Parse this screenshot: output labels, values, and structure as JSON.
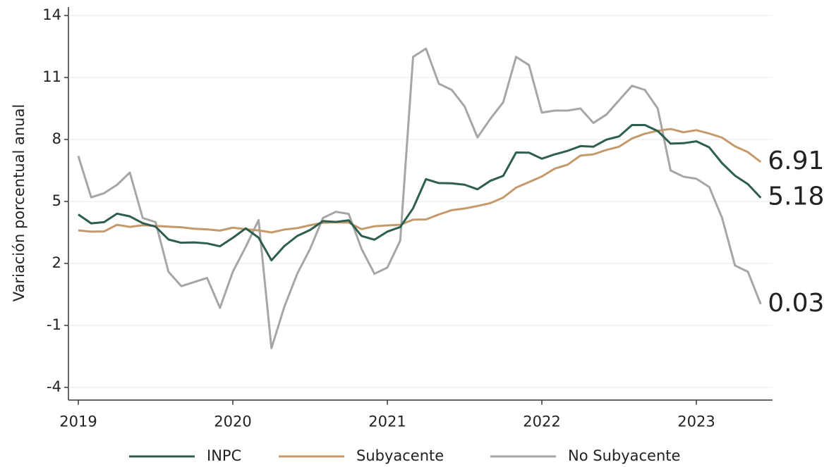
{
  "chart_data": {
    "type": "line",
    "ylabel": "Variación porcentual anual",
    "categories": [
      "2019",
      null,
      null,
      null,
      null,
      null,
      null,
      null,
      null,
      null,
      null,
      null,
      "2020",
      null,
      null,
      null,
      null,
      null,
      null,
      null,
      null,
      null,
      null,
      null,
      "2021",
      null,
      null,
      null,
      null,
      null,
      null,
      null,
      null,
      null,
      null,
      null,
      "2022",
      null,
      null,
      null,
      null,
      null,
      null,
      null,
      null,
      null,
      null,
      null,
      "2023",
      null,
      null,
      null,
      null,
      null
    ],
    "series": [
      {
        "name": "INPC",
        "color": "#2e5e4e",
        "values": [
          4.37,
          3.94,
          4.0,
          4.41,
          4.28,
          3.95,
          3.78,
          3.16,
          3.0,
          3.02,
          2.97,
          2.83,
          3.24,
          3.7,
          3.25,
          2.15,
          2.84,
          3.33,
          3.62,
          4.05,
          4.01,
          4.09,
          3.33,
          3.15,
          3.54,
          3.76,
          4.67,
          6.08,
          5.89,
          5.88,
          5.81,
          5.59,
          6.0,
          6.24,
          7.37,
          7.36,
          7.07,
          7.28,
          7.45,
          7.68,
          7.65,
          7.99,
          8.15,
          8.7,
          8.7,
          8.41,
          7.8,
          7.82,
          7.91,
          7.62,
          6.85,
          6.25,
          5.84,
          5.18
        ]
      },
      {
        "name": "Subyacente",
        "color": "#c49a6c",
        "values": [
          3.6,
          3.54,
          3.55,
          3.87,
          3.77,
          3.85,
          3.82,
          3.78,
          3.75,
          3.68,
          3.65,
          3.59,
          3.73,
          3.66,
          3.6,
          3.5,
          3.64,
          3.71,
          3.85,
          3.97,
          3.99,
          3.98,
          3.66,
          3.8,
          3.84,
          3.87,
          4.12,
          4.13,
          4.37,
          4.58,
          4.66,
          4.78,
          4.92,
          5.19,
          5.67,
          5.94,
          6.21,
          6.59,
          6.78,
          7.22,
          7.28,
          7.49,
          7.65,
          8.05,
          8.28,
          8.42,
          8.51,
          8.35,
          8.45,
          8.29,
          8.09,
          7.67,
          7.39,
          6.91
        ]
      },
      {
        "name": "No Subyacente",
        "color": "#a6a6a6",
        "values": [
          7.2,
          5.2,
          5.4,
          5.8,
          6.4,
          4.2,
          4.0,
          1.6,
          0.9,
          1.1,
          1.3,
          -0.15,
          1.6,
          2.8,
          4.1,
          -2.1,
          -0.1,
          1.5,
          2.7,
          4.2,
          4.5,
          4.4,
          2.7,
          1.5,
          1.8,
          3.1,
          12.0,
          12.4,
          10.7,
          10.4,
          9.6,
          8.1,
          9.0,
          9.8,
          12.0,
          11.6,
          9.3,
          9.4,
          9.4,
          9.5,
          8.8,
          9.2,
          9.9,
          10.6,
          10.4,
          9.5,
          6.5,
          6.2,
          6.1,
          5.7,
          4.2,
          1.9,
          1.6,
          0.03
        ]
      }
    ],
    "ylim": [
      -4.6,
      14.4
    ],
    "yticks": [
      -4,
      -1,
      2,
      5,
      8,
      11,
      14
    ],
    "grid": true,
    "legend": "bottom"
  }
}
